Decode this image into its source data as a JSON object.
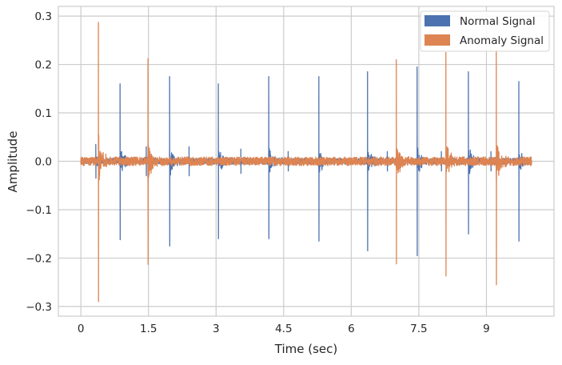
{
  "chart_data": {
    "type": "line",
    "title": "",
    "xlabel": "Time (sec)",
    "ylabel": "Amplitude",
    "xlim": [
      -0.5,
      10.5
    ],
    "ylim": [
      -0.32,
      0.32
    ],
    "xticks": [
      0,
      1.5,
      3,
      4.5,
      6,
      7.5,
      9
    ],
    "xtick_labels": [
      "0",
      "1.5",
      "3",
      "4.5",
      "6",
      "7.5",
      "9"
    ],
    "yticks": [
      -0.3,
      -0.2,
      -0.1,
      0.0,
      0.1,
      0.2,
      0.3
    ],
    "ytick_labels": [
      "−0.3",
      "−0.2",
      "−0.1",
      "0.0",
      "0.1",
      "0.2",
      "0.3"
    ],
    "grid": true,
    "legend": "top-right",
    "duration_sec": 10.0,
    "series": [
      {
        "name": "Normal Signal",
        "color": "#4c72b0",
        "noise_amplitude": 0.006,
        "peaks": [
          {
            "t": 0.87,
            "max": 0.16,
            "min": -0.162
          },
          {
            "t": 1.97,
            "max": 0.175,
            "min": -0.175
          },
          {
            "t": 3.05,
            "max": 0.16,
            "min": -0.16
          },
          {
            "t": 4.17,
            "max": 0.175,
            "min": -0.16
          },
          {
            "t": 5.28,
            "max": 0.175,
            "min": -0.165
          },
          {
            "t": 6.36,
            "max": 0.185,
            "min": -0.185
          },
          {
            "t": 7.46,
            "max": 0.195,
            "min": -0.195
          },
          {
            "t": 8.6,
            "max": 0.185,
            "min": -0.15
          },
          {
            "t": 9.72,
            "max": 0.165,
            "min": -0.165
          }
        ],
        "minor_peaks": [
          {
            "t": 0.33,
            "max": 0.035,
            "min": -0.035
          },
          {
            "t": 1.45,
            "max": 0.03,
            "min": -0.03
          },
          {
            "t": 2.4,
            "max": 0.03,
            "min": -0.03
          },
          {
            "t": 3.55,
            "max": 0.025,
            "min": -0.025
          },
          {
            "t": 4.6,
            "max": 0.02,
            "min": -0.02
          },
          {
            "t": 6.8,
            "max": 0.02,
            "min": -0.02
          },
          {
            "t": 8.0,
            "max": 0.02,
            "min": -0.02
          },
          {
            "t": 9.1,
            "max": 0.02,
            "min": -0.02
          }
        ]
      },
      {
        "name": "Anomaly Signal",
        "color": "#dd8452",
        "noise_amplitude": 0.009,
        "peaks": [
          {
            "t": 0.39,
            "max": 0.287,
            "min": -0.29
          },
          {
            "t": 1.49,
            "max": 0.212,
            "min": -0.213
          },
          {
            "t": 7.0,
            "max": 0.21,
            "min": -0.212
          },
          {
            "t": 8.1,
            "max": 0.225,
            "min": -0.237
          },
          {
            "t": 9.22,
            "max": 0.23,
            "min": -0.255
          }
        ],
        "minor_peaks": []
      }
    ]
  }
}
